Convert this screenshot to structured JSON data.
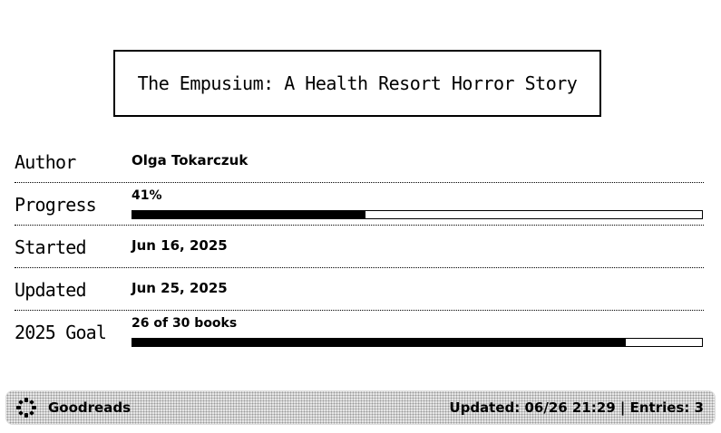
{
  "book": {
    "title": "The Empusium: A Health Resort Horror Story"
  },
  "details": {
    "author": {
      "label": "Author",
      "value": "Olga Tokarczuk"
    },
    "progress": {
      "label": "Progress",
      "value": "41%",
      "fraction": 0.41
    },
    "started": {
      "label": "Started",
      "value": "Jun 16, 2025"
    },
    "updated": {
      "label": "Updated",
      "value": "Jun 25, 2025"
    },
    "goal": {
      "label": "2025 Goal",
      "value": "26 of 30 books",
      "fraction": 0.8667
    }
  },
  "footer": {
    "source": "Goodreads",
    "source_icon": "goodreads-logo-icon",
    "status": "Updated: 06/26 21:29 | Entries: 3"
  },
  "colors": {
    "background": "#ffffff",
    "ink": "#000000",
    "footer_bg": "#e6e6e6"
  }
}
